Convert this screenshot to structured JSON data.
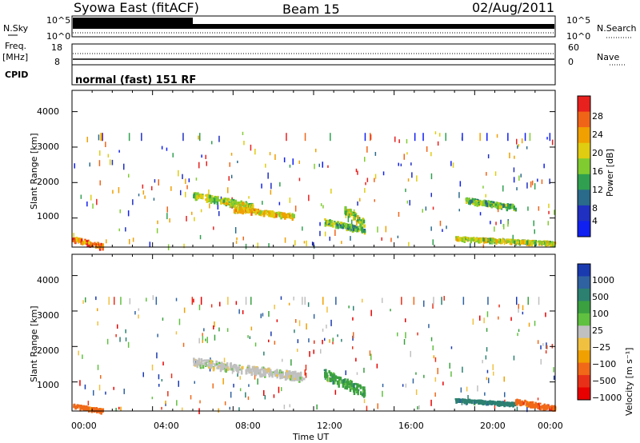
{
  "header": {
    "station": "Syowa East (fitACF)",
    "beam": "Beam 15",
    "date": "02/Aug/2011"
  },
  "top_panels": {
    "nsky_label": "N.Sky",
    "nsky_ticks": [
      "10^5",
      "10^0"
    ],
    "nsearch_label": "N.Search",
    "nsearch_ticks": [
      "10^5",
      "10^0"
    ],
    "freq_label": "Freq.",
    "freq_unit": "[MHz]",
    "freq_ticks": [
      "18",
      "8"
    ],
    "nave_label": "Nave",
    "nave_ticks": [
      "60",
      "0"
    ],
    "cpid_label": "CPID",
    "cpid_text": "normal (fast) 151 RF"
  },
  "chart_data": [
    {
      "type": "heatmap",
      "title": "",
      "xlabel": "Time UT",
      "ylabel": "Slant Range [km]",
      "x_ticks": [
        "00:00",
        "04:00",
        "08:00",
        "12:00",
        "16:00",
        "20:00",
        "00:00"
      ],
      "y_ticks": [
        "1000",
        "2000",
        "3000",
        "4000"
      ],
      "ylim": [
        180,
        4600
      ],
      "colorbar": {
        "label": "Power [dB]",
        "ticks": [
          "28",
          "24",
          "20",
          "16",
          "12",
          "8",
          "4"
        ],
        "colors": [
          "#e8201e",
          "#f06418",
          "#f0a000",
          "#e0cc10",
          "#80cc30",
          "#30a050",
          "#2a6a8a",
          "#2030c0",
          "#1020f0"
        ]
      },
      "patches": [
        {
          "t": [
            6.0,
            9.0
          ],
          "r": [
            1300,
            1750
          ],
          "value": 12
        },
        {
          "t": [
            8.0,
            11.0
          ],
          "r": [
            1050,
            1350
          ],
          "value": 16
        },
        {
          "t": [
            12.5,
            14.5
          ],
          "r": [
            650,
            1000
          ],
          "value": 8
        },
        {
          "t": [
            13.5,
            14.5
          ],
          "r": [
            800,
            1400
          ],
          "value": 12
        },
        {
          "t": [
            0.0,
            1.5
          ],
          "r": [
            200,
            500
          ],
          "value": 20
        },
        {
          "t": [
            19.5,
            22.0
          ],
          "r": [
            1300,
            1600
          ],
          "value": 8
        },
        {
          "t": [
            19.0,
            24.0
          ],
          "r": [
            300,
            500
          ],
          "value": 12
        }
      ]
    },
    {
      "type": "heatmap",
      "title": "",
      "xlabel": "Time UT",
      "ylabel": "Slant Range [km]",
      "x_ticks": [
        "00:00",
        "04:00",
        "08:00",
        "12:00",
        "16:00",
        "20:00",
        "00:00"
      ],
      "y_ticks": [
        "1000",
        "2000",
        "3000",
        "4000"
      ],
      "ylim": [
        180,
        4600
      ],
      "colorbar": {
        "label": "Velocity [m s⁻¹]",
        "ticks": [
          "1000",
          "500",
          "100",
          "25",
          "−25",
          "−100",
          "−500",
          "−1000"
        ],
        "colors": [
          "#1a3ab0",
          "#2f62a0",
          "#2c8070",
          "#3aa040",
          "#60c040",
          "#c0c0c0",
          "#f0c040",
          "#f0a000",
          "#f06818",
          "#e83018",
          "#e80000"
        ]
      },
      "patches": [
        {
          "t": [
            6.0,
            11.5
          ],
          "r": [
            1100,
            1700
          ],
          "value": 0
        },
        {
          "t": [
            12.5,
            14.5
          ],
          "r": [
            650,
            1400
          ],
          "value": 100
        },
        {
          "t": [
            19.0,
            22.0
          ],
          "r": [
            400,
            550
          ],
          "value": 500
        },
        {
          "t": [
            22.0,
            24.0
          ],
          "r": [
            250,
            550
          ],
          "value": -100
        },
        {
          "t": [
            0.0,
            1.5
          ],
          "r": [
            200,
            400
          ],
          "value": -300
        }
      ]
    }
  ]
}
